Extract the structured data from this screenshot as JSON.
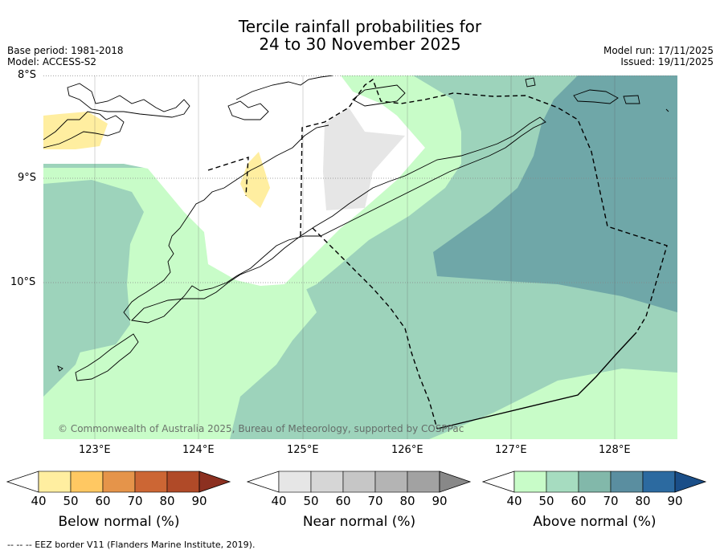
{
  "title": {
    "line1": "Tercile rainfall probabilities for",
    "line2": "24 to 30 November 2025"
  },
  "info_left": {
    "base_period": "Base period: 1981-2018",
    "model": "Model: ACCESS-S2"
  },
  "info_right": {
    "model_run": "Model run: 17/11/2025",
    "issued": "Issued: 19/11/2025"
  },
  "axes": {
    "lat_labels": [
      "8°S",
      "9°S",
      "10°S"
    ],
    "lon_labels": [
      "123°E",
      "124°E",
      "125°E",
      "126°E",
      "127°E",
      "128°E"
    ]
  },
  "copyright": "© Commonwealth of Australia 2025, Bureau of Meteorology, supported by COSPPac",
  "colorbars": [
    {
      "title": "Below normal (%)",
      "ticks": [
        "40",
        "50",
        "60",
        "70",
        "80",
        "90"
      ],
      "colors": [
        "#ffffff",
        "#ffeea0",
        "#ffc862",
        "#e5944a",
        "#cc6634",
        "#b04a28",
        "#8c3020"
      ]
    },
    {
      "title": "Near normal (%)",
      "ticks": [
        "40",
        "50",
        "60",
        "70",
        "80",
        "90"
      ],
      "colors": [
        "#ffffff",
        "#e6e6e6",
        "#d6d6d6",
        "#c6c6c6",
        "#b4b4b4",
        "#a2a2a2",
        "#888888"
      ]
    },
    {
      "title": "Above normal (%)",
      "ticks": [
        "40",
        "50",
        "60",
        "70",
        "80",
        "90"
      ],
      "colors": [
        "#ffffff",
        "#c8fcc8",
        "#a6dcc0",
        "#82b8aa",
        "#5a8ea0",
        "#2c6aa0",
        "#1a4e88"
      ]
    }
  ],
  "footnote": "--  --  -- EEZ border V11 (Flanders Marine Institute, 2019).",
  "map_colors": {
    "near_normal_50": "#e6e6e6",
    "below_normal_50": "#ffeea0",
    "above_normal_50": "#c8fcc8",
    "above_normal_60": "#9dd3bb",
    "above_normal_70": "#6fa7a8"
  }
}
